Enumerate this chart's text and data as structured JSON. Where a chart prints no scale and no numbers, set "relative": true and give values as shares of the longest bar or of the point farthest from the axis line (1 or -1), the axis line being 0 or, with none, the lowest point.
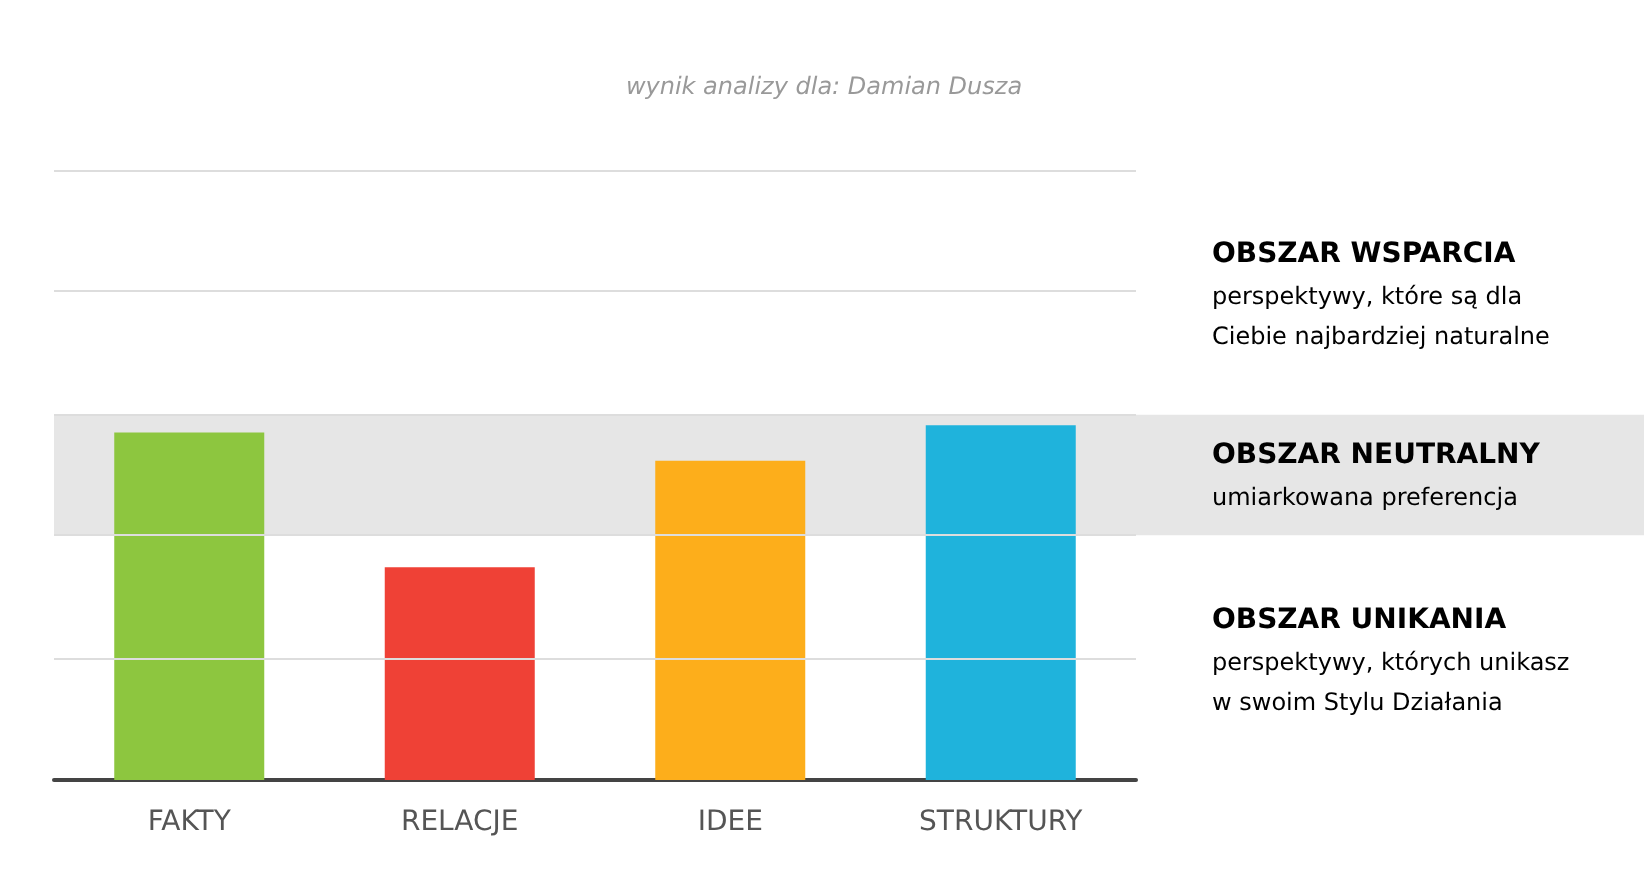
{
  "chart_data": {
    "type": "bar",
    "title": "wynik analizy dla: Damian Dusza",
    "categories": [
      "FAKTY",
      "RELACJE",
      "IDEE",
      "STRUKTURY"
    ],
    "values": [
      0.98,
      0.6,
      0.9,
      1
    ],
    "colors": [
      "#8dc63f",
      "#ef4136",
      "#fdae1b",
      "#1fb3dc"
    ],
    "relative": true,
    "ref_lines": [
      {
        "axis": "y",
        "value": 0.345,
        "color": "#dddddd"
      },
      {
        "axis": "y",
        "value": 0.69,
        "color": "#dddddd"
      },
      {
        "axis": "y",
        "value": 1.03,
        "color": "#dddddd"
      },
      {
        "axis": "y",
        "value": 1.38,
        "color": "#dddddd"
      },
      {
        "axis": "y",
        "value": 1.72,
        "color": "#dddddd"
      }
    ],
    "bands": [
      {
        "axis": "y",
        "from": 0.69,
        "to": 1.03,
        "color": "#e6e6e6",
        "label": "OBSZAR NEUTRALNY\numiarkowana preferencja"
      }
    ],
    "annotations": [
      "OBSZAR WSPARCIA\nperspektywy, które są dla\nCiebie najbardziej naturalne",
      "OBSZAR UNIKANIA\nperspektywy, których unikasz\nw swoim Stylu Działania"
    ]
  }
}
